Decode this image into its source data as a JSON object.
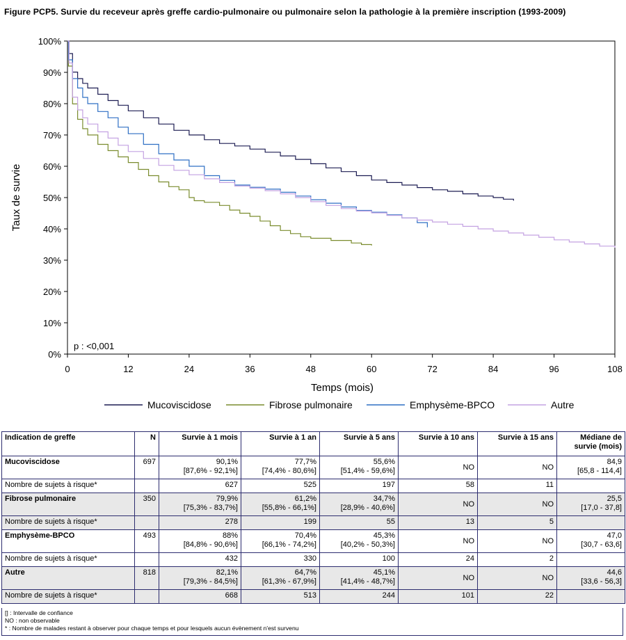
{
  "figure_title": "Figure PCP5. Survie du receveur après greffe cardio-pulmonaire ou pulmonaire selon la pathologie à la première inscription (1993-2009)",
  "chart_data": {
    "type": "line",
    "title": "Figure PCP5. Survie du receveur après greffe cardio-pulmonaire ou pulmonaire selon la pathologie à la première inscription (1993-2009)",
    "xlabel": "Temps (mois)",
    "ylabel": "Taux de survie",
    "xlim": [
      0,
      108
    ],
    "ylim": [
      0,
      100
    ],
    "x_ticks": [
      0,
      12,
      24,
      36,
      48,
      60,
      72,
      84,
      96,
      108
    ],
    "x_tick_labels": [
      "0",
      "12",
      "24",
      "36",
      "48",
      "60",
      "72",
      "84",
      "96",
      "108"
    ],
    "y_ticks": [
      0,
      10,
      20,
      30,
      40,
      50,
      60,
      70,
      80,
      90,
      100
    ],
    "y_tick_labels": [
      "0%",
      "10%",
      "20%",
      "30%",
      "40%",
      "50%",
      "60%",
      "70%",
      "80%",
      "90%",
      "100%"
    ],
    "grid": false,
    "legend_position": "bottom",
    "annotation": "p : <0,001",
    "series": [
      {
        "name": "Mucoviscidose",
        "color": "#1c1c52",
        "points": [
          [
            0,
            100
          ],
          [
            0.3,
            96
          ],
          [
            1,
            90.1
          ],
          [
            2,
            88
          ],
          [
            3,
            86.5
          ],
          [
            4,
            85
          ],
          [
            6,
            83
          ],
          [
            8,
            81
          ],
          [
            10,
            79.5
          ],
          [
            12,
            77.7
          ],
          [
            15,
            75.5
          ],
          [
            18,
            73.5
          ],
          [
            21,
            71.5
          ],
          [
            24,
            70
          ],
          [
            27,
            68.5
          ],
          [
            30,
            67.3
          ],
          [
            33,
            66.5
          ],
          [
            36,
            65.5
          ],
          [
            39,
            64.5
          ],
          [
            42,
            63.3
          ],
          [
            45,
            62.2
          ],
          [
            48,
            60.8
          ],
          [
            51,
            59.5
          ],
          [
            54,
            58.3
          ],
          [
            57,
            57
          ],
          [
            60,
            55.6
          ],
          [
            63,
            54.8
          ],
          [
            66,
            54
          ],
          [
            69,
            53.2
          ],
          [
            72,
            52.5
          ],
          [
            75,
            52
          ],
          [
            78,
            51.2
          ],
          [
            81,
            50.5
          ],
          [
            84,
            50
          ],
          [
            86,
            49.5
          ],
          [
            88,
            49
          ]
        ]
      },
      {
        "name": "Fibrose pulmonaire",
        "color": "#7a8c2e",
        "points": [
          [
            0,
            100
          ],
          [
            0.2,
            92
          ],
          [
            1,
            79.9
          ],
          [
            2,
            75
          ],
          [
            3,
            72
          ],
          [
            4,
            70
          ],
          [
            6,
            67
          ],
          [
            8,
            65
          ],
          [
            10,
            63
          ],
          [
            12,
            61.2
          ],
          [
            14,
            59
          ],
          [
            16,
            57
          ],
          [
            18,
            55
          ],
          [
            20,
            53.5
          ],
          [
            22,
            52.5
          ],
          [
            24,
            50
          ],
          [
            25,
            49
          ],
          [
            27,
            48.5
          ],
          [
            30,
            47.5
          ],
          [
            32,
            46
          ],
          [
            34,
            45
          ],
          [
            36,
            44
          ],
          [
            38,
            42.5
          ],
          [
            40,
            41
          ],
          [
            42,
            39.5
          ],
          [
            44,
            38.5
          ],
          [
            46,
            37.5
          ],
          [
            48,
            37
          ],
          [
            52,
            36.3
          ],
          [
            56,
            35.5
          ],
          [
            58,
            35
          ],
          [
            60,
            34.7
          ]
        ]
      },
      {
        "name": "Emphysème-BPCO",
        "color": "#2e6fc4",
        "points": [
          [
            0,
            100
          ],
          [
            0.2,
            94
          ],
          [
            1,
            88
          ],
          [
            2,
            85
          ],
          [
            3,
            82
          ],
          [
            4,
            80
          ],
          [
            6,
            77.5
          ],
          [
            8,
            75.5
          ],
          [
            10,
            72.5
          ],
          [
            12,
            70.4
          ],
          [
            15,
            67
          ],
          [
            18,
            64
          ],
          [
            21,
            62
          ],
          [
            24,
            60
          ],
          [
            27,
            57
          ],
          [
            30,
            55.5
          ],
          [
            33,
            54
          ],
          [
            36,
            53.3
          ],
          [
            39,
            52.7
          ],
          [
            42,
            51.7
          ],
          [
            45,
            50.5
          ],
          [
            48,
            49.3
          ],
          [
            51,
            48.2
          ],
          [
            54,
            47
          ],
          [
            57,
            45.9
          ],
          [
            60,
            45.3
          ],
          [
            63,
            44.5
          ],
          [
            66,
            43.5
          ],
          [
            69,
            42
          ],
          [
            71,
            40.5
          ]
        ]
      },
      {
        "name": "Autre",
        "color": "#c4a2e2",
        "points": [
          [
            0,
            100
          ],
          [
            0.3,
            93
          ],
          [
            1,
            82.1
          ],
          [
            2,
            78
          ],
          [
            3,
            75.5
          ],
          [
            4,
            73.5
          ],
          [
            6,
            71
          ],
          [
            8,
            69
          ],
          [
            10,
            66.7
          ],
          [
            12,
            64.7
          ],
          [
            15,
            62.5
          ],
          [
            18,
            60.3
          ],
          [
            21,
            58.7
          ],
          [
            24,
            57.3
          ],
          [
            27,
            56
          ],
          [
            30,
            54.8
          ],
          [
            33,
            53.7
          ],
          [
            36,
            53
          ],
          [
            39,
            52.2
          ],
          [
            42,
            51.2
          ],
          [
            45,
            50
          ],
          [
            48,
            48.7
          ],
          [
            51,
            47.5
          ],
          [
            54,
            46.5
          ],
          [
            57,
            45.7
          ],
          [
            60,
            45.1
          ],
          [
            63,
            44.3
          ],
          [
            66,
            43.5
          ],
          [
            69,
            42.8
          ],
          [
            72,
            42.2
          ],
          [
            75,
            41.5
          ],
          [
            78,
            40.8
          ],
          [
            81,
            40
          ],
          [
            84,
            39.3
          ],
          [
            87,
            38.7
          ],
          [
            90,
            38
          ],
          [
            93,
            37.3
          ],
          [
            96,
            36.5
          ],
          [
            99,
            35.8
          ],
          [
            102,
            35.2
          ],
          [
            105,
            34.5
          ],
          [
            108,
            34
          ]
        ]
      }
    ]
  },
  "table": {
    "headers": [
      "Indication de greffe",
      "N",
      "Survie à 1 mois",
      "Survie à 1 an",
      "Survie à 5 ans",
      "Survie à 10 ans",
      "Survie à 15 ans",
      "Médiane de survie (mois)"
    ],
    "groups": [
      {
        "name": "Mucoviscidose",
        "n": "697",
        "m1": "90,1%",
        "m1_ci": "[87,6% - 92,1%]",
        "y1": "77,7%",
        "y1_ci": "[74,4% - 80,6%]",
        "y5": "55,6%",
        "y5_ci": "[51,4% - 59,6%]",
        "y10": "NO",
        "y15": "NO",
        "median": "84,9",
        "median_ci": "[65,8 - 114,4]",
        "risk_label": "Nombre de sujets à risque*",
        "risk": [
          "627",
          "525",
          "197",
          "58",
          "11"
        ]
      },
      {
        "name": "Fibrose pulmonaire",
        "n": "350",
        "m1": "79,9%",
        "m1_ci": "[75,3% - 83,7%]",
        "y1": "61,2%",
        "y1_ci": "[55,8% - 66,1%]",
        "y5": "34,7%",
        "y5_ci": "[28,9% - 40,6%]",
        "y10": "NO",
        "y15": "NO",
        "median": "25,5",
        "median_ci": "[17,0 - 37,8]",
        "risk_label": "Nombre de sujets à risque*",
        "risk": [
          "278",
          "199",
          "55",
          "13",
          "5"
        ]
      },
      {
        "name": "Emphysème-BPCO",
        "n": "493",
        "m1": "88%",
        "m1_ci": "[84,8% - 90,6%]",
        "y1": "70,4%",
        "y1_ci": "[66,1% - 74,2%]",
        "y5": "45,3%",
        "y5_ci": "[40,2% - 50,3%]",
        "y10": "NO",
        "y15": "NO",
        "median": "47,0",
        "median_ci": "[30,7 - 63,6]",
        "risk_label": "Nombre de sujets à risque*",
        "risk": [
          "432",
          "330",
          "100",
          "24",
          "2"
        ]
      },
      {
        "name": "Autre",
        "n": "818",
        "m1": "82,1%",
        "m1_ci": "[79,3% - 84,5%]",
        "y1": "64,7%",
        "y1_ci": "[61,3% - 67,9%]",
        "y5": "45,1%",
        "y5_ci": "[41,4% - 48,7%]",
        "y10": "NO",
        "y15": "NO",
        "median": "44,6",
        "median_ci": "[33,6 - 56,3]",
        "risk_label": "Nombre de sujets à risque*",
        "risk": [
          "668",
          "513",
          "244",
          "101",
          "22"
        ]
      }
    ]
  },
  "footnotes": [
    "[] : Intervalle de confiance",
    "NO : non observable",
    "* : Nombre de malades restant à observer pour chaque temps et pour lesquels aucun évènement n'est survenu"
  ]
}
